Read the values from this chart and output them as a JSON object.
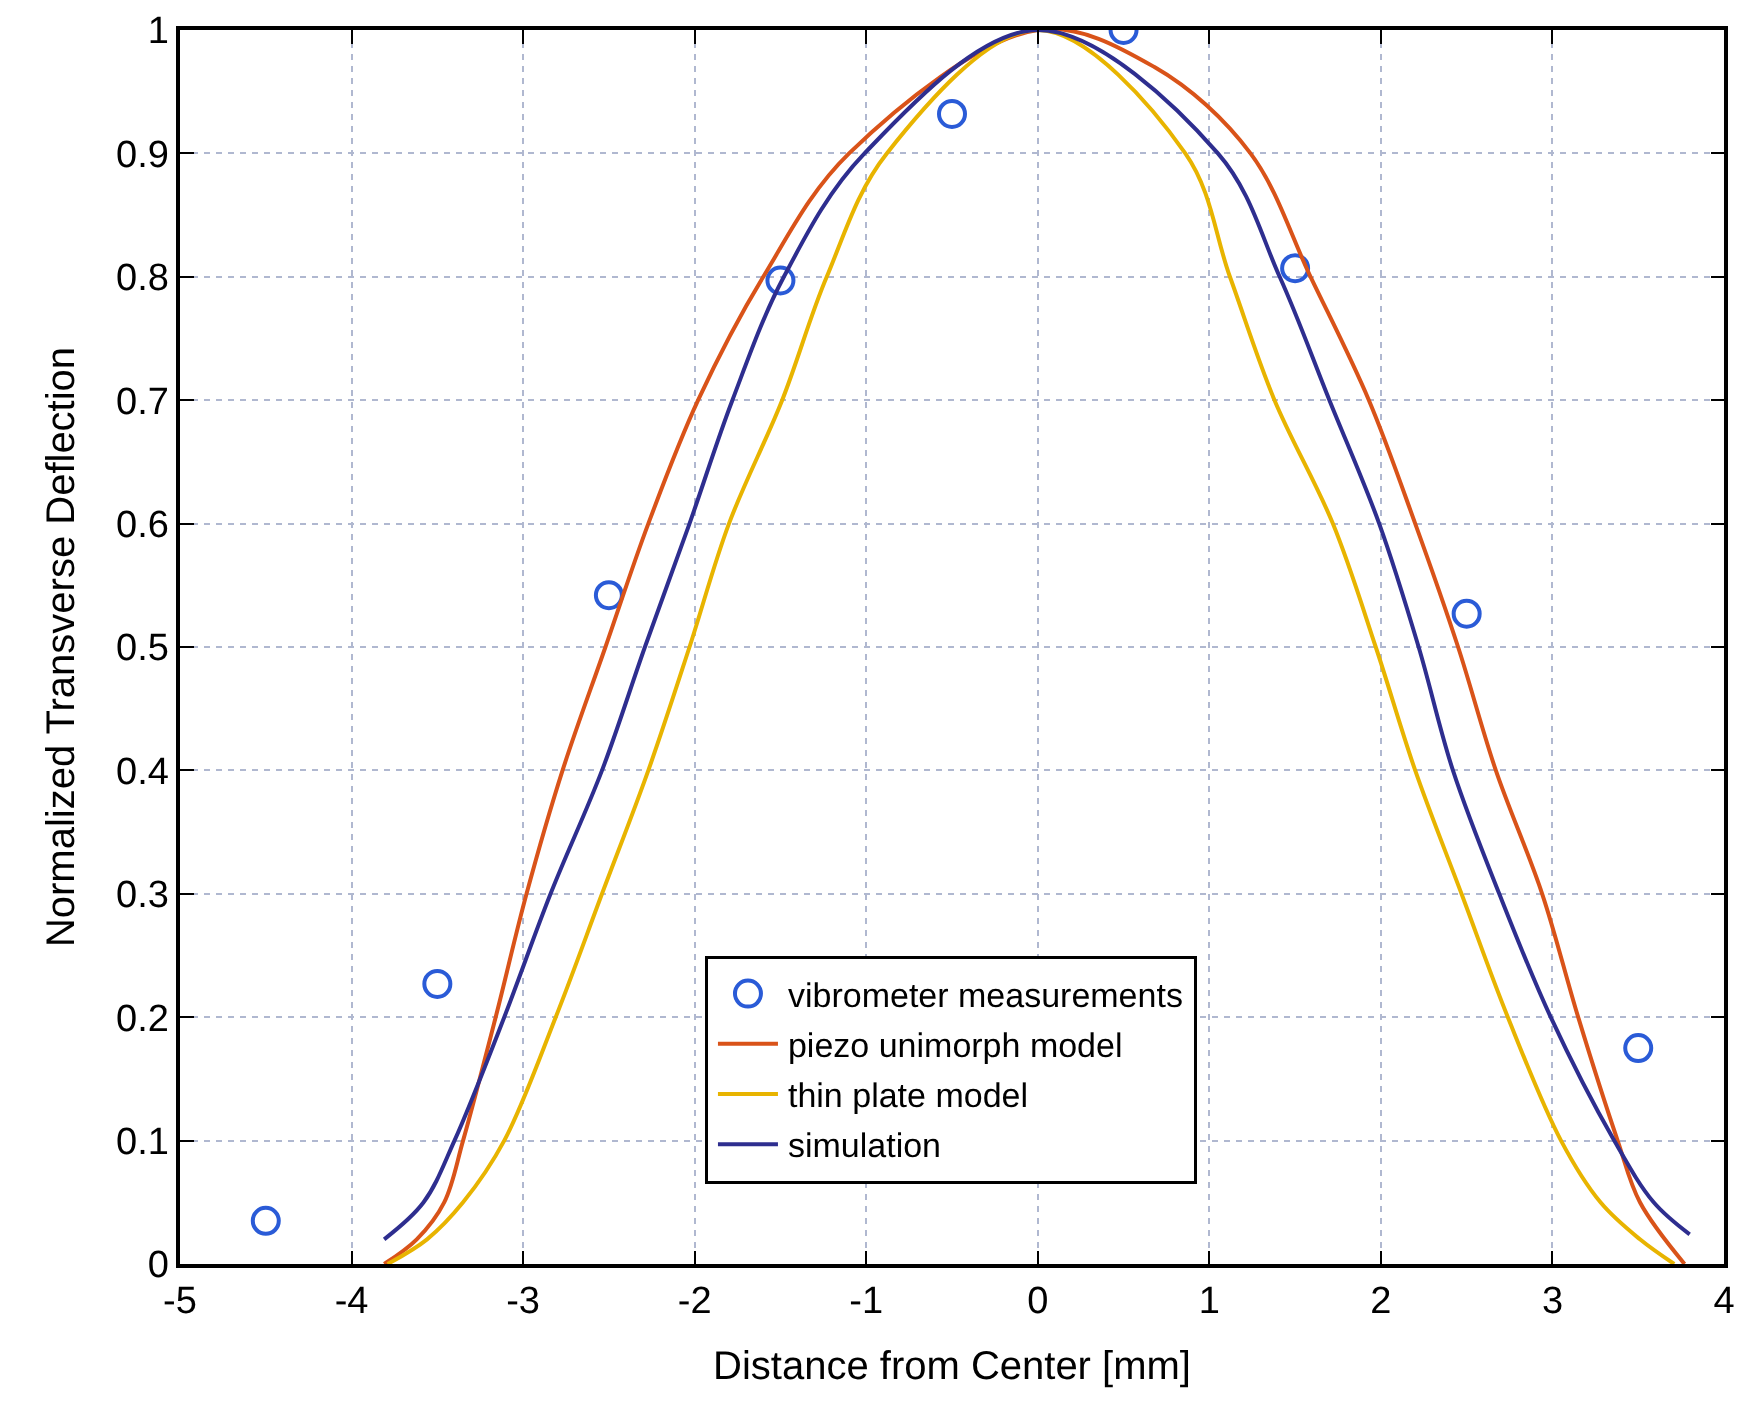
{
  "chart_data": {
    "type": "line",
    "xlabel": "Distance from Center [mm]",
    "ylabel": "Normalized Transverse Deflection",
    "xlim": [
      -5,
      4
    ],
    "xticks": [
      -5,
      -4,
      -3,
      -2,
      -1,
      0,
      1,
      2,
      3,
      4
    ],
    "ylim": [
      0,
      1
    ],
    "yticks": [
      0,
      0.1,
      0.2,
      0.3,
      0.4,
      0.5,
      0.6,
      0.7,
      0.8,
      0.9,
      1
    ],
    "grid": true,
    "legend": "bottom",
    "series": [
      {
        "name": "vibrometer measurements",
        "type": "scatter",
        "marker": "circle",
        "color": "#2a5bd7",
        "x": [
          -4.5,
          -3.5,
          -2.5,
          -1.5,
          -0.5,
          0.5,
          1.5,
          2.5,
          3.5
        ],
        "values": [
          0.035,
          0.227,
          0.542,
          0.797,
          0.932,
          1,
          0.807,
          0.527,
          0.175
        ]
      },
      {
        "name": "piezo unimorph model",
        "color": "#d95319",
        "x": [
          -3.81,
          -3.62,
          -3.46,
          -3.35,
          -3.16,
          -2.98,
          -2.77,
          -2.52,
          -2.27,
          -1.98,
          -1.6,
          -1.1,
          0,
          0.68,
          1.24,
          1.59,
          1.93,
          2.2,
          2.45,
          2.67,
          2.94,
          3.15,
          3.38,
          3.51,
          3.77
        ],
        "values": [
          0,
          0.02,
          0.05,
          0.1,
          0.2,
          0.3,
          0.4,
          0.5,
          0.6,
          0.7,
          0.8,
          0.9,
          1,
          0.97,
          0.9,
          0.8,
          0.7,
          0.6,
          0.5,
          0.4,
          0.3,
          0.2,
          0.1,
          0.05,
          0
        ]
      },
      {
        "name": "thin plate model",
        "color": "#e8b400",
        "x": [
          -3.79,
          -3.56,
          -3.35,
          -3.11,
          -2.81,
          -2.54,
          -2.27,
          -2.03,
          -1.8,
          -1.49,
          -1.23,
          -0.88,
          0,
          0.86,
          1.12,
          1.38,
          1.72,
          1.97,
          2.2,
          2.47,
          2.74,
          3.05,
          3.28,
          3.51,
          3.71
        ],
        "values": [
          0,
          0.02,
          0.05,
          0.1,
          0.2,
          0.3,
          0.4,
          0.5,
          0.6,
          0.7,
          0.8,
          0.9,
          1,
          0.9,
          0.8,
          0.7,
          0.6,
          0.5,
          0.4,
          0.3,
          0.2,
          0.1,
          0.05,
          0.02,
          0
        ]
      },
      {
        "name": "simulation",
        "color": "#2e2e8f",
        "x": [
          -3.81,
          -3.58,
          -3.4,
          -3.11,
          -2.84,
          -2.54,
          -2.29,
          -2.03,
          -1.78,
          -1.48,
          -1.01,
          0,
          1.05,
          1.41,
          1.7,
          1.99,
          2.22,
          2.42,
          2.69,
          2.99,
          3.36,
          3.59,
          3.8
        ],
        "values": [
          0.02,
          0.05,
          0.1,
          0.2,
          0.3,
          0.4,
          0.5,
          0.6,
          0.7,
          0.8,
          0.9,
          1,
          0.9,
          0.8,
          0.7,
          0.6,
          0.5,
          0.4,
          0.3,
          0.2,
          0.1,
          0.05,
          0.024
        ]
      }
    ]
  }
}
